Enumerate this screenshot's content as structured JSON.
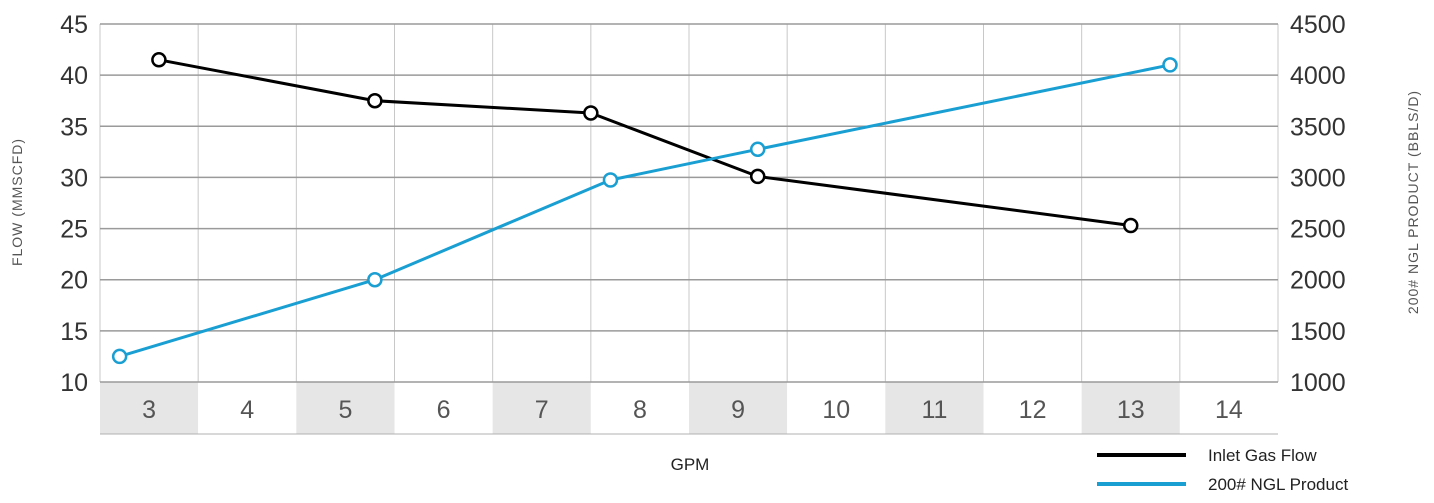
{
  "chart_data": {
    "type": "line",
    "xlabel": "GPM",
    "ylabel_left": "FLOW (MMSCFD)",
    "ylabel_right": "200# NGL PRODUCT (BBLS/D)",
    "categories": [
      "3",
      "4",
      "5",
      "6",
      "7",
      "8",
      "9",
      "10",
      "11",
      "12",
      "13",
      "14"
    ],
    "shaded_categories": [
      "3",
      "5",
      "7",
      "9",
      "11",
      "13"
    ],
    "ylim_left": [
      10,
      45
    ],
    "yticks_left": [
      "10",
      "15",
      "20",
      "25",
      "30",
      "35",
      "40",
      "45"
    ],
    "ylim_right": [
      1000,
      4500
    ],
    "yticks_right": [
      "1000",
      "1500",
      "2000",
      "2500",
      "3000",
      "3500",
      "4000",
      "4500"
    ],
    "grid": true,
    "legend_position": "bottom-right",
    "series": [
      {
        "name": "Inlet Gas Flow",
        "axis": "left",
        "color": "#000000",
        "points": [
          {
            "x": 3.1,
            "y": 41.5
          },
          {
            "x": 5.3,
            "y": 37.5
          },
          {
            "x": 7.5,
            "y": 36.3
          },
          {
            "x": 9.2,
            "y": 30.1
          },
          {
            "x": 13.0,
            "y": 25.3
          }
        ]
      },
      {
        "name": "200# NGL Product",
        "axis": "right",
        "color": "#1a9fd3",
        "points": [
          {
            "x": 2.7,
            "y": 1250
          },
          {
            "x": 5.3,
            "y": 2000
          },
          {
            "x": 7.7,
            "y": 2975
          },
          {
            "x": 9.2,
            "y": 3275
          },
          {
            "x": 13.4,
            "y": 4100
          }
        ]
      }
    ]
  }
}
